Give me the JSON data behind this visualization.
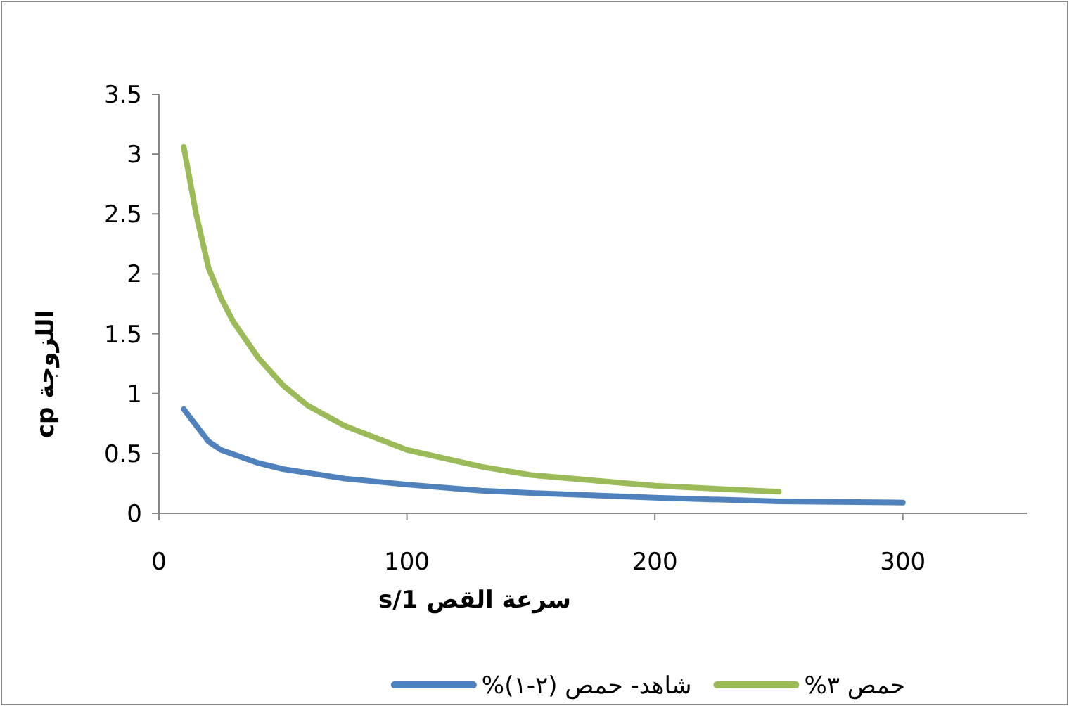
{
  "chart_data": {
    "type": "line",
    "xlabel": "سرعة القص 1/s",
    "ylabel": "اللزوجة cp",
    "xlim": [
      0,
      350
    ],
    "xticks": [
      0,
      100,
      200,
      300
    ],
    "ylim": [
      0,
      3.5
    ],
    "yticks": [
      0,
      0.5,
      1,
      1.5,
      2,
      2.5,
      3,
      3.5
    ],
    "legend": "bottom",
    "marker": "none",
    "grid": false,
    "series": [
      {
        "name": "شاهد- حمص (٢-١)%",
        "color": "#4f81bd",
        "x": [
          10,
          20,
          25,
          40,
          50,
          75,
          100,
          130,
          150,
          200,
          250,
          300
        ],
        "values": [
          0.87,
          0.6,
          0.53,
          0.42,
          0.37,
          0.29,
          0.24,
          0.19,
          0.17,
          0.13,
          0.1,
          0.09
        ]
      },
      {
        "name": "حمص ٣%",
        "color": "#9bbb59",
        "x": [
          10,
          15,
          20,
          25,
          30,
          40,
          50,
          60,
          75,
          100,
          130,
          150,
          200,
          250
        ],
        "values": [
          3.06,
          2.5,
          2.05,
          1.8,
          1.6,
          1.3,
          1.07,
          0.9,
          0.73,
          0.53,
          0.39,
          0.32,
          0.23,
          0.18
        ]
      }
    ]
  }
}
